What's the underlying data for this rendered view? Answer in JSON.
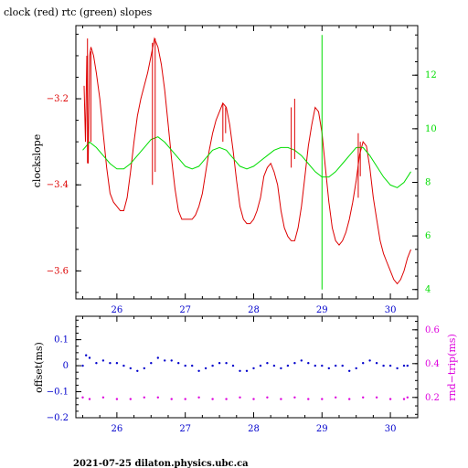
{
  "title": "clock (red) rtc (green) slopes",
  "footer": "2021-07-25  dilaton.physics.ubc.ca",
  "colors": {
    "red": "#dd0000",
    "green": "#00dd00",
    "blue": "#0000cc",
    "magenta": "#dd00dd",
    "frame": "#000000"
  },
  "chart_data": [
    {
      "type": "line",
      "ylabel": "clockslope",
      "y2label": "",
      "xlim": [
        25.4,
        30.4
      ],
      "ylim": [
        -3.665,
        -3.03
      ],
      "y2lim": [
        3.65,
        13.85
      ],
      "xticks": [
        26,
        27,
        28,
        29,
        30
      ],
      "yticks": [
        -3.6,
        -3.4,
        -3.2
      ],
      "y2ticks": [
        4,
        6,
        8,
        10,
        12
      ],
      "grid": false,
      "series": [
        {
          "name": "clock (red)",
          "color": "#dd0000",
          "axis": "left",
          "x": [
            25.52,
            25.54,
            25.56,
            25.58,
            25.6,
            25.62,
            25.64,
            25.66,
            25.68,
            25.7,
            25.75,
            25.8,
            25.85,
            25.9,
            25.95,
            26.0,
            26.05,
            26.1,
            26.15,
            26.2,
            26.25,
            26.3,
            26.35,
            26.4,
            26.45,
            26.5,
            26.55,
            26.6,
            26.65,
            26.7,
            26.75,
            26.8,
            26.85,
            26.9,
            26.95,
            27.0,
            27.05,
            27.1,
            27.15,
            27.2,
            27.25,
            27.3,
            27.35,
            27.4,
            27.45,
            27.5,
            27.55,
            27.6,
            27.65,
            27.7,
            27.75,
            27.8,
            27.85,
            27.9,
            27.95,
            28.0,
            28.05,
            28.1,
            28.15,
            28.2,
            28.25,
            28.3,
            28.35,
            28.4,
            28.45,
            28.5,
            28.55,
            28.6,
            28.65,
            28.7,
            28.75,
            28.8,
            28.85,
            28.9,
            28.95,
            29.0,
            29.05,
            29.1,
            29.15,
            29.2,
            29.25,
            29.3,
            29.35,
            29.4,
            29.45,
            29.5,
            29.55,
            29.6,
            29.65,
            29.7,
            29.75,
            29.8,
            29.85,
            29.9,
            29.95,
            30.0,
            30.05,
            30.1,
            30.15,
            30.2,
            30.25,
            30.3
          ],
          "y": [
            -3.17,
            -3.3,
            -3.1,
            -3.35,
            -3.1,
            -3.08,
            -3.09,
            -3.1,
            -3.12,
            -3.14,
            -3.2,
            -3.28,
            -3.36,
            -3.42,
            -3.44,
            -3.45,
            -3.46,
            -3.46,
            -3.43,
            -3.37,
            -3.3,
            -3.24,
            -3.2,
            -3.17,
            -3.14,
            -3.1,
            -3.06,
            -3.08,
            -3.12,
            -3.18,
            -3.26,
            -3.34,
            -3.41,
            -3.46,
            -3.48,
            -3.48,
            -3.48,
            -3.48,
            -3.47,
            -3.45,
            -3.42,
            -3.37,
            -3.32,
            -3.28,
            -3.25,
            -3.23,
            -3.21,
            -3.22,
            -3.26,
            -3.32,
            -3.39,
            -3.45,
            -3.48,
            -3.49,
            -3.49,
            -3.48,
            -3.46,
            -3.43,
            -3.38,
            -3.36,
            -3.35,
            -3.37,
            -3.4,
            -3.46,
            -3.5,
            -3.52,
            -3.53,
            -3.53,
            -3.5,
            -3.45,
            -3.38,
            -3.31,
            -3.26,
            -3.22,
            -3.23,
            -3.28,
            -3.36,
            -3.44,
            -3.5,
            -3.53,
            -3.54,
            -3.53,
            -3.51,
            -3.48,
            -3.44,
            -3.39,
            -3.33,
            -3.3,
            -3.31,
            -3.36,
            -3.43,
            -3.48,
            -3.53,
            -3.56,
            -3.58,
            -3.6,
            -3.62,
            -3.63,
            -3.62,
            -3.6,
            -3.57,
            -3.55
          ]
        },
        {
          "name": "rtc (green)",
          "color": "#00dd00",
          "axis": "right",
          "x": [
            25.5,
            25.6,
            25.7,
            25.8,
            25.9,
            26.0,
            26.1,
            26.2,
            26.3,
            26.4,
            26.5,
            26.6,
            26.7,
            26.8,
            26.9,
            27.0,
            27.1,
            27.2,
            27.3,
            27.4,
            27.5,
            27.6,
            27.7,
            27.8,
            27.9,
            28.0,
            28.1,
            28.2,
            28.3,
            28.4,
            28.5,
            28.6,
            28.7,
            28.8,
            28.9,
            29.0,
            29.1,
            29.2,
            29.3,
            29.4,
            29.5,
            29.6,
            29.7,
            29.8,
            29.9,
            30.0,
            30.1,
            30.2,
            30.3
          ],
          "y": [
            9.2,
            9.5,
            9.3,
            9.0,
            8.7,
            8.5,
            8.5,
            8.7,
            9.0,
            9.3,
            9.6,
            9.7,
            9.5,
            9.2,
            8.9,
            8.6,
            8.5,
            8.6,
            8.9,
            9.2,
            9.3,
            9.2,
            8.9,
            8.6,
            8.5,
            8.6,
            8.8,
            9.0,
            9.2,
            9.3,
            9.3,
            9.2,
            9.0,
            8.7,
            8.4,
            8.2,
            8.2,
            8.4,
            8.7,
            9.0,
            9.3,
            9.3,
            9.0,
            8.6,
            8.2,
            7.9,
            7.8,
            8.0,
            8.4
          ]
        }
      ],
      "spikes": [
        {
          "color": "#dd0000",
          "x": 25.57,
          "y0": -3.35,
          "y1": -3.06
        },
        {
          "color": "#dd0000",
          "x": 25.62,
          "y0": -3.3,
          "y1": -3.09
        },
        {
          "color": "#dd0000",
          "x": 26.52,
          "y0": -3.4,
          "y1": -3.07
        },
        {
          "color": "#dd0000",
          "x": 26.56,
          "y0": -3.37,
          "y1": -3.06
        },
        {
          "color": "#dd0000",
          "x": 27.55,
          "y0": -3.3,
          "y1": -3.21
        },
        {
          "color": "#dd0000",
          "x": 27.59,
          "y0": -3.28,
          "y1": -3.22
        },
        {
          "color": "#dd0000",
          "x": 28.55,
          "y0": -3.36,
          "y1": -3.22
        },
        {
          "color": "#dd0000",
          "x": 28.6,
          "y0": -3.34,
          "y1": -3.2
        },
        {
          "color": "#dd0000",
          "x": 29.53,
          "y0": -3.43,
          "y1": -3.28
        },
        {
          "color": "#dd0000",
          "x": 29.56,
          "y0": -3.38,
          "y1": -3.3
        },
        {
          "color": "#00dd00",
          "x": 29.0,
          "y0": 4.0,
          "y1": 13.5
        }
      ]
    },
    {
      "type": "scatter",
      "ylabel": "offset(ms)",
      "y2label": "rnd−trip(ms)",
      "xlim": [
        25.4,
        30.4
      ],
      "ylim": [
        -0.2,
        0.19
      ],
      "y2lim": [
        0.08,
        0.68
      ],
      "xticks": [
        26,
        27,
        28,
        29,
        30
      ],
      "yticks": [
        -0.2,
        -0.1,
        0,
        0.1
      ],
      "ytick_labels": [
        "−0.2",
        "−0.1",
        "0",
        "0.1"
      ],
      "y2ticks": [
        0.2,
        0.4,
        0.6
      ],
      "grid": false,
      "series": [
        {
          "name": "offset",
          "color": "#0000cc",
          "axis": "left",
          "x": [
            25.5,
            25.55,
            25.6,
            25.7,
            25.8,
            25.9,
            26.0,
            26.1,
            26.2,
            26.3,
            26.4,
            26.5,
            26.6,
            26.7,
            26.8,
            26.9,
            27.0,
            27.1,
            27.2,
            27.3,
            27.4,
            27.5,
            27.6,
            27.7,
            27.8,
            27.9,
            28.0,
            28.1,
            28.2,
            28.3,
            28.4,
            28.5,
            28.6,
            28.7,
            28.8,
            28.9,
            29.0,
            29.1,
            29.2,
            29.3,
            29.4,
            29.5,
            29.6,
            29.7,
            29.8,
            29.9,
            30.0,
            30.1,
            30.2,
            30.25
          ],
          "y": [
            0.0,
            0.04,
            0.03,
            0.01,
            0.02,
            0.01,
            0.01,
            0.0,
            -0.01,
            -0.02,
            -0.01,
            0.01,
            0.03,
            0.02,
            0.02,
            0.01,
            0.0,
            0.0,
            -0.02,
            -0.01,
            0.0,
            0.01,
            0.01,
            0.0,
            -0.02,
            -0.02,
            -0.01,
            0.0,
            0.01,
            0.0,
            -0.01,
            0.0,
            0.01,
            0.02,
            0.01,
            0.0,
            0.0,
            -0.01,
            0.0,
            0.0,
            -0.02,
            -0.01,
            0.01,
            0.02,
            0.01,
            0.0,
            0.0,
            -0.01,
            0.0,
            0.0
          ]
        },
        {
          "name": "rnd-trip",
          "color": "#dd00dd",
          "axis": "right",
          "x": [
            25.5,
            25.6,
            25.8,
            26.0,
            26.2,
            26.4,
            26.6,
            26.8,
            27.0,
            27.2,
            27.4,
            27.6,
            27.8,
            28.0,
            28.2,
            28.4,
            28.6,
            28.8,
            29.0,
            29.2,
            29.4,
            29.6,
            29.8,
            30.0,
            30.2,
            30.25
          ],
          "y": [
            0.2,
            0.19,
            0.2,
            0.19,
            0.19,
            0.2,
            0.2,
            0.19,
            0.19,
            0.2,
            0.19,
            0.19,
            0.2,
            0.19,
            0.2,
            0.19,
            0.2,
            0.19,
            0.19,
            0.2,
            0.19,
            0.2,
            0.2,
            0.19,
            0.19,
            0.2
          ]
        }
      ]
    }
  ]
}
